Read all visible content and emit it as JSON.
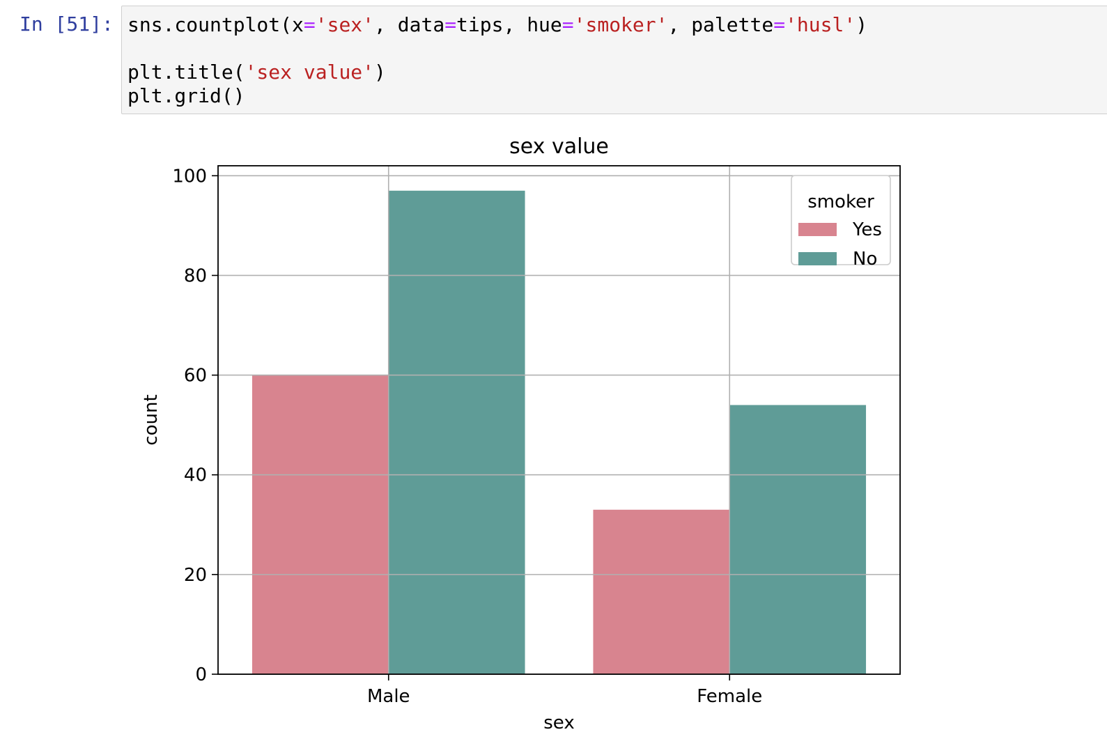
{
  "cell": {
    "prompt": "In [51]:",
    "code_lines": [
      [
        {
          "t": "sns.countplot(x",
          "c": ""
        },
        {
          "t": "=",
          "c": "op"
        },
        {
          "t": "'sex'",
          "c": "str"
        },
        {
          "t": ", data",
          "c": ""
        },
        {
          "t": "=",
          "c": "op"
        },
        {
          "t": "tips, hue",
          "c": ""
        },
        {
          "t": "=",
          "c": "op"
        },
        {
          "t": "'smoker'",
          "c": "str"
        },
        {
          "t": ", palette",
          "c": ""
        },
        {
          "t": "=",
          "c": "op"
        },
        {
          "t": "'husl'",
          "c": "str"
        },
        {
          "t": ")",
          "c": ""
        }
      ],
      [],
      [
        {
          "t": "plt.title(",
          "c": ""
        },
        {
          "t": "'sex value'",
          "c": "str"
        },
        {
          "t": ")",
          "c": ""
        }
      ],
      [
        {
          "t": "plt.grid()",
          "c": ""
        }
      ]
    ]
  },
  "chart_data": {
    "type": "bar",
    "title": "sex value",
    "xlabel": "sex",
    "ylabel": "count",
    "categories": [
      "Male",
      "Female"
    ],
    "series": [
      {
        "name": "Yes",
        "color": "#d8848f",
        "values": [
          60,
          33
        ]
      },
      {
        "name": "No",
        "color": "#5f9c97",
        "values": [
          97,
          54
        ]
      }
    ],
    "ylim": [
      0,
      102
    ],
    "yticks": [
      0,
      20,
      40,
      60,
      80,
      100
    ],
    "grid": true,
    "legend": {
      "title": "smoker",
      "placement": "top-right"
    }
  }
}
